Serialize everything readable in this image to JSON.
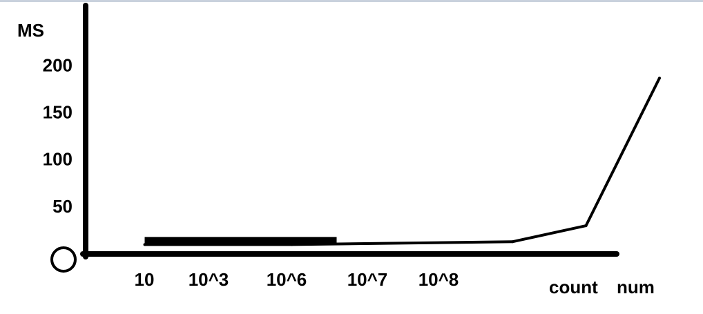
{
  "chart_data": {
    "type": "line",
    "ylabel": "MS",
    "xlabel_parts": [
      "count",
      "num"
    ],
    "categories": [
      "10",
      "10^3",
      "10^6",
      "10^7",
      "10^8"
    ],
    "x_exponents": [
      1,
      3,
      6,
      7,
      8
    ],
    "values": [
      10,
      10,
      13,
      30,
      187
    ],
    "yticks": [
      50,
      100,
      150,
      200
    ],
    "ylim": [
      0,
      200
    ],
    "grid": false,
    "legend": "none",
    "origin_marker": "circle",
    "line_color": "#000000"
  }
}
